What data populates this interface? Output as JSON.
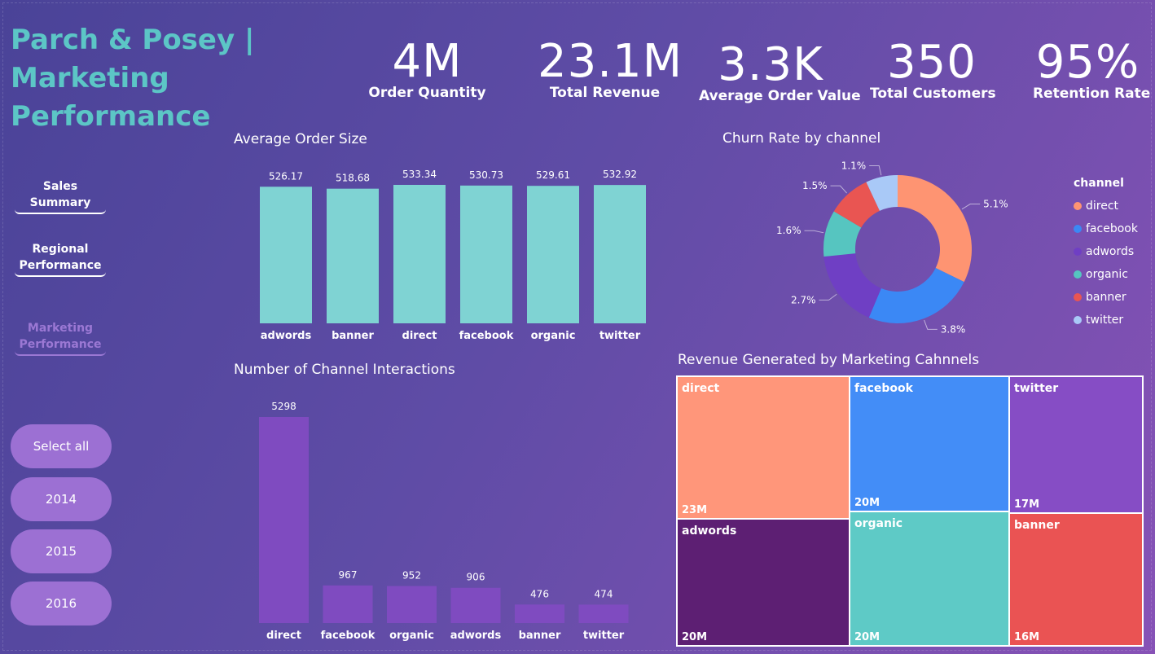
{
  "title": "Parch & Posey | Marketing Performance",
  "kpis": [
    {
      "value": "4M",
      "label": "Order Quantity"
    },
    {
      "value": "23.1M",
      "label": "Total Revenue"
    },
    {
      "value": "3.3K",
      "label": "Average Order Value"
    },
    {
      "value": "350",
      "label": "Total Customers"
    },
    {
      "value": "95%",
      "label": "Retention Rate"
    }
  ],
  "nav": {
    "sales_summary": "Sales Summary",
    "regional_line1": "Regional",
    "regional_line2": "Performance",
    "marketing_line1": "Marketing",
    "marketing_line2": "Performance"
  },
  "filters": {
    "select_all": "Select all",
    "y2014": "2014",
    "y2015": "2015",
    "y2016": "2016"
  },
  "chart_data": [
    {
      "type": "bar",
      "title": "Average Order Size",
      "categories": [
        "adwords",
        "banner",
        "direct",
        "facebook",
        "organic",
        "twitter"
      ],
      "values": [
        526.17,
        518.68,
        533.34,
        530.73,
        529.61,
        532.92
      ],
      "labels": [
        "526.17",
        "518.68",
        "533.34",
        "530.73",
        "529.61",
        "532.92"
      ],
      "ylim": [
        0,
        533.34
      ],
      "color": "#7fd3d3"
    },
    {
      "type": "bar",
      "title": "Number of Channel Interactions",
      "categories": [
        "direct",
        "facebook",
        "organic",
        "adwords",
        "banner",
        "twitter"
      ],
      "values": [
        5298,
        967,
        952,
        906,
        476,
        474
      ],
      "labels": [
        "5298",
        "967",
        "952",
        "906",
        "476",
        "474"
      ],
      "ylim": [
        0,
        5298
      ],
      "color": "#7f4bc0"
    },
    {
      "type": "pie",
      "title": "Churn Rate by channel",
      "legend_title": "channel",
      "legend_position": "right",
      "slices": [
        {
          "name": "direct",
          "value": 5.1,
          "label": "5.1%",
          "color": "#fe9472"
        },
        {
          "name": "facebook",
          "value": 3.8,
          "label": "3.8%",
          "color": "#3b88f5"
        },
        {
          "name": "adwords",
          "value": 2.7,
          "label": "2.7%",
          "color": "#6f3fc4"
        },
        {
          "name": "organic",
          "value": 1.6,
          "label": "1.6%",
          "color": "#56c5c0"
        },
        {
          "name": "banner",
          "value": 1.5,
          "label": "1.5%",
          "color": "#e95552"
        },
        {
          "name": "twitter",
          "value": 1.1,
          "label": "1.1%",
          "color": "#a9c9f7"
        }
      ]
    }
  ],
  "treemap": {
    "title": "Revenue Generated by Marketing Cahnnels",
    "items": [
      {
        "name": "direct",
        "value": "23M",
        "color": "#ff967a"
      },
      {
        "name": "adwords",
        "value": "20M",
        "color": "#5d1f73"
      },
      {
        "name": "facebook",
        "value": "20M",
        "color": "#438df7"
      },
      {
        "name": "organic",
        "value": "20M",
        "color": "#5ecac6"
      },
      {
        "name": "twitter",
        "value": "17M",
        "color": "#864dc5"
      },
      {
        "name": "banner",
        "value": "16M",
        "color": "#ea5353"
      }
    ]
  }
}
